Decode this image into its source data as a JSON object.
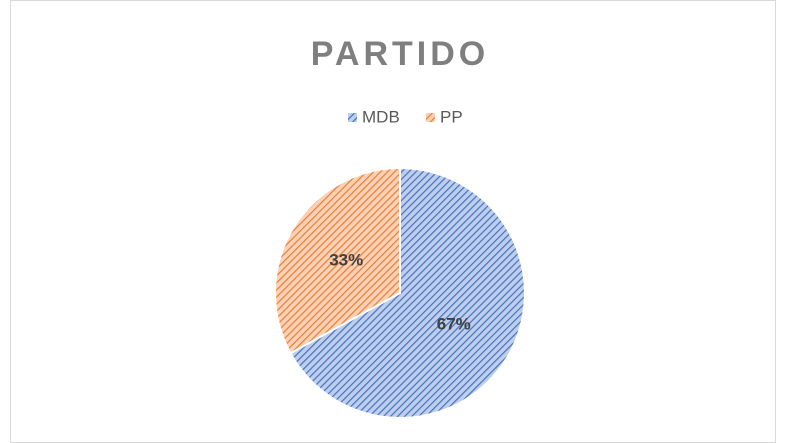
{
  "chart_data": {
    "type": "pie",
    "title": "PARTIDO",
    "categories": [
      "MDB",
      "PP"
    ],
    "values": [
      67,
      33
    ],
    "value_labels": [
      "67%",
      "33%"
    ],
    "colors": [
      "#4472c4",
      "#ed7d31"
    ],
    "legend": "top"
  }
}
